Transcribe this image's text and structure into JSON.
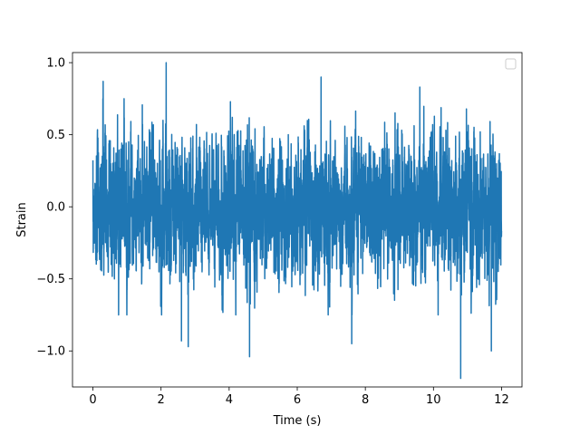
{
  "chart_data": {
    "type": "line",
    "xlabel": "Time (s)",
    "ylabel": "Strain",
    "xlim": [
      -0.6,
      12.6
    ],
    "ylim": [
      -1.25,
      1.07
    ],
    "xticks": [
      0,
      2,
      4,
      6,
      8,
      10,
      12
    ],
    "xtick_labels": [
      "0",
      "2",
      "4",
      "6",
      "8",
      "10",
      "12"
    ],
    "yticks": [
      -1.0,
      -0.5,
      0.0,
      0.5,
      1.0
    ],
    "ytick_labels": [
      "−1.0",
      "−0.5",
      "0.0",
      "0.5",
      "1.0"
    ],
    "grid": false,
    "legend": {
      "placement": "top-right",
      "entries": []
    },
    "series": [
      {
        "color": "#1f77b4",
        "x_range": [
          0,
          12
        ],
        "description_values": {
          "typical_envelope": [
            -0.6,
            0.6
          ],
          "peaks": [
            {
              "x": 2.15,
              "y": 1.0
            },
            {
              "x": 0.3,
              "y": 0.87
            },
            {
              "x": 9.6,
              "y": 0.83
            },
            {
              "x": 6.7,
              "y": 0.9
            },
            {
              "x": 2.6,
              "y": -0.93
            },
            {
              "x": 2.8,
              "y": -0.97
            },
            {
              "x": 4.6,
              "y": -1.04
            },
            {
              "x": 7.6,
              "y": -0.95
            },
            {
              "x": 10.8,
              "y": -1.19
            },
            {
              "x": 11.7,
              "y": -1.0
            }
          ]
        }
      }
    ]
  }
}
